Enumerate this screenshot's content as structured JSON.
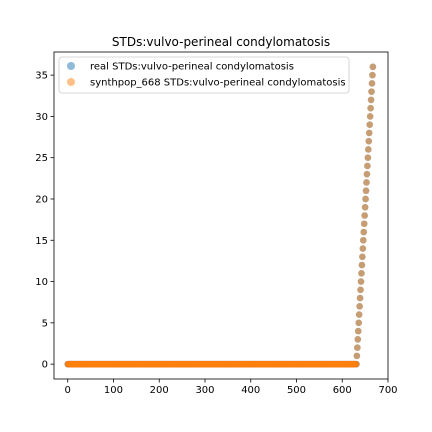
{
  "chart_data": {
    "type": "scatter",
    "title": "STDs:vulvo-perineal condylomatosis",
    "xlabel": "",
    "ylabel": "",
    "xlim": [
      -30,
      700
    ],
    "ylim": [
      -1.8,
      37.8
    ],
    "xticks": [
      0,
      100,
      200,
      300,
      400,
      500,
      600,
      700
    ],
    "yticks": [
      0,
      5,
      10,
      15,
      20,
      25,
      30,
      35
    ],
    "grid": false,
    "legend_placement": "top-left",
    "series": [
      {
        "name": "real STDs:vulvo-perineal condylomatosis",
        "color": "#1f77b4",
        "alpha": 0.5,
        "zero_count": 632,
        "ramp_start_index": 632,
        "ramp_start_value": 1,
        "ramp_end_value": 36
      },
      {
        "name": "synthpop_668 STDs:vulvo-perineal condylomatosis",
        "color": "#ff7f0e",
        "alpha": 0.5,
        "zero_count": 632,
        "ramp_start_index": 632,
        "ramp_start_value": 1,
        "ramp_end_value": 36
      }
    ]
  }
}
